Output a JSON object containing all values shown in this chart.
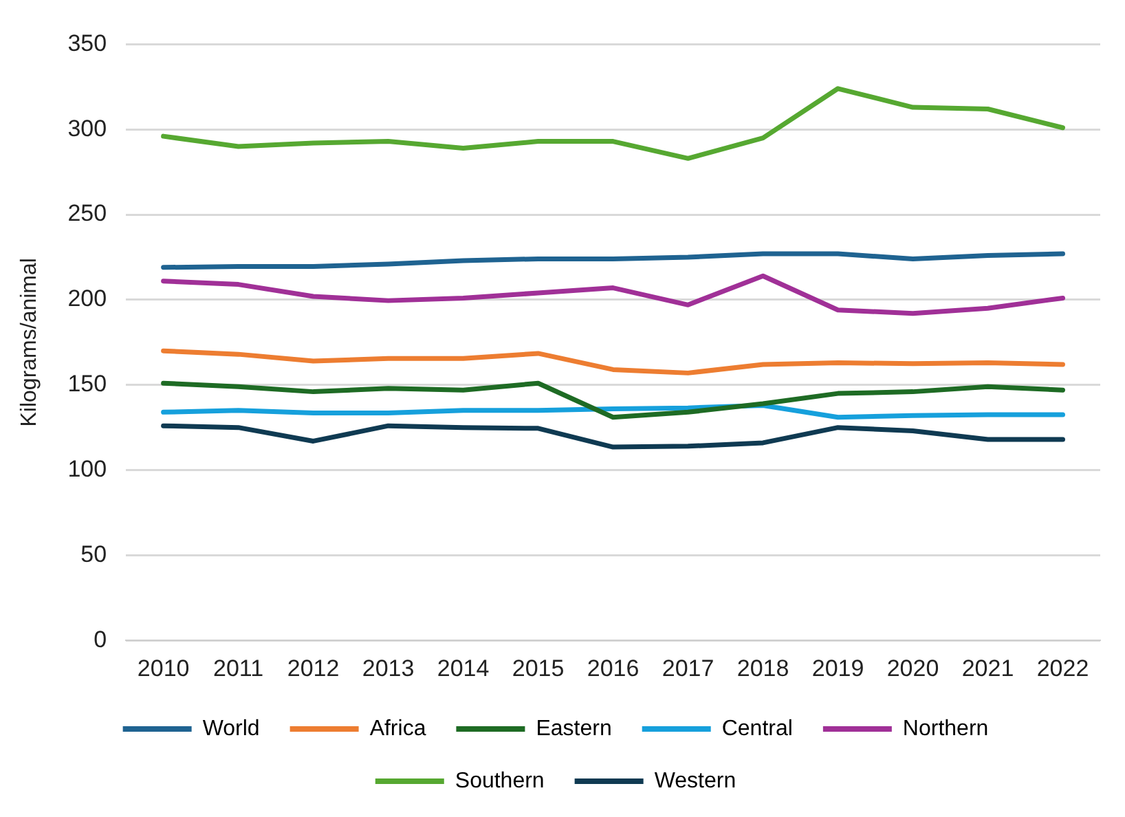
{
  "chart_data": {
    "type": "line",
    "ylabel": "Kilograms/animal",
    "categories": [
      "2010",
      "2011",
      "2012",
      "2013",
      "2014",
      "2015",
      "2016",
      "2017",
      "2018",
      "2019",
      "2020",
      "2021",
      "2022"
    ],
    "ylim": [
      0,
      350
    ],
    "yticks": [
      0,
      50,
      100,
      150,
      200,
      250,
      300,
      350
    ],
    "grid": "y",
    "legend": "bottom",
    "marker": "none",
    "line_style": "solid",
    "series": [
      {
        "name": "World",
        "color": "#1f6391",
        "values": [
          219,
          219.5,
          219.5,
          221,
          223,
          224,
          224,
          225,
          227,
          227,
          224,
          226,
          227
        ]
      },
      {
        "name": "Africa",
        "color": "#ed7d31",
        "values": [
          170,
          168,
          164,
          165.5,
          165.5,
          168.5,
          159,
          157,
          162,
          163,
          162.5,
          163,
          162
        ]
      },
      {
        "name": "Eastern",
        "color": "#1e6b24",
        "values": [
          151,
          149,
          146,
          148,
          147,
          151,
          131,
          134,
          139,
          145,
          146,
          149,
          147
        ]
      },
      {
        "name": "Central",
        "color": "#16a0dc",
        "values": [
          134,
          135,
          133.5,
          133.5,
          135,
          135,
          136,
          136.5,
          138,
          131,
          132,
          132.5,
          132.5
        ]
      },
      {
        "name": "Northern",
        "color": "#a03097",
        "values": [
          211,
          209,
          202,
          199.5,
          201,
          204,
          207,
          197,
          214,
          194,
          192,
          195,
          201
        ]
      },
      {
        "name": "Southern",
        "color": "#56a831",
        "values": [
          296,
          290,
          292,
          293,
          289,
          293,
          293,
          283,
          295,
          324,
          313,
          312,
          301
        ]
      },
      {
        "name": "Western",
        "color": "#0f3a52",
        "values": [
          126,
          125,
          117,
          126,
          125,
          124.5,
          113.5,
          114,
          116,
          125,
          123,
          118,
          118
        ]
      }
    ]
  }
}
